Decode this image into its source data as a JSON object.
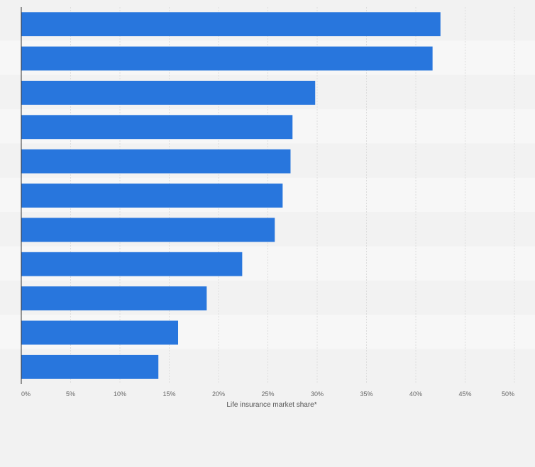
{
  "chart_data": {
    "type": "bar",
    "orientation": "horizontal",
    "categories": [
      "",
      "",
      "",
      "",
      "",
      "",
      "",
      "",
      "",
      "",
      ""
    ],
    "values": [
      42.5,
      41.7,
      29.8,
      27.5,
      27.3,
      26.5,
      25.7,
      22.4,
      18.8,
      15.9,
      13.9
    ],
    "title": "",
    "xlabel": "Life insurance market share*",
    "ylabel": "",
    "xlim": [
      0,
      50
    ],
    "ticks": [
      0,
      5,
      10,
      15,
      20,
      25,
      30,
      35,
      40,
      45,
      50
    ],
    "tick_labels": [
      "0%",
      "5%",
      "10%",
      "15%",
      "20%",
      "25%",
      "30%",
      "35%",
      "40%",
      "45%",
      "50%"
    ],
    "grid": true,
    "legend": "none",
    "colors": {
      "bar": "#2876dd",
      "background": "#f2f2f2",
      "band_light": "#f7f7f7",
      "band_dark": "#f2f2f2",
      "grid": "#dddddd",
      "axis": "#333333",
      "tick_text": "#666666",
      "label_text": "#555555"
    }
  }
}
